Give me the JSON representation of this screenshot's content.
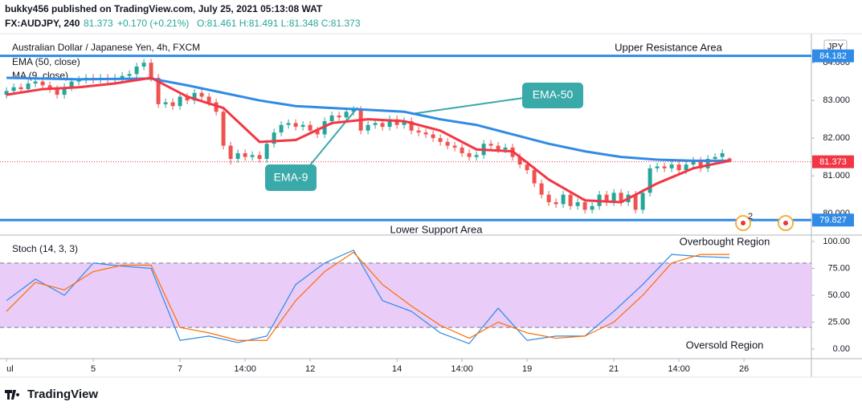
{
  "header": {
    "author_line": "bukky456 published on TradingView.com, July 25, 2021 05:13:08 WAT",
    "symbol": "FX:AUDJPY, 240",
    "price": "81.373",
    "change": "+0.170 (+0.21%)",
    "ohlc": "O:81.461 H:81.491 L:81.348 C:81.373"
  },
  "logo": "TradingView",
  "chart_data": [
    {
      "type": "candlestick",
      "title": "Australian Dollar / Japanese Yen, 4h, FXCM",
      "currency": "JPY",
      "xlim": [
        -0.9,
        111.1
      ],
      "ylim": [
        79.45,
        84.77
      ],
      "yticks": [
        {
          "value": 80,
          "label": "80.000"
        },
        {
          "value": 81,
          "label": "81.000"
        },
        {
          "value": 82,
          "label": "82.000"
        },
        {
          "value": 83,
          "label": "83.000"
        },
        {
          "value": 84,
          "label": "84.000"
        }
      ],
      "up_color": "#26a69a",
      "down_color": "#ef5350",
      "open": [
        83.15,
        83.25,
        83.35,
        83.3,
        83.45,
        83.5,
        83.4,
        83.3,
        83.15,
        83.35,
        83.5,
        83.55,
        83.6,
        83.55,
        83.6,
        83.55,
        83.6,
        83.65,
        83.7,
        83.9,
        84.0,
        83.6,
        82.9,
        82.95,
        82.85,
        83.1,
        83.0,
        83.2,
        83.1,
        82.95,
        82.7,
        81.8,
        81.45,
        81.6,
        81.5,
        81.55,
        81.45,
        81.85,
        82.15,
        82.35,
        82.4,
        82.3,
        82.35,
        82.2,
        82.1,
        82.45,
        82.6,
        82.55,
        82.7,
        82.75,
        82.2,
        82.35,
        82.4,
        82.3,
        82.5,
        82.35,
        82.45,
        82.2,
        82.15,
        82.1,
        82.0,
        81.9,
        81.8,
        81.75,
        81.6,
        81.5,
        81.55,
        81.85,
        81.8,
        81.7,
        81.75,
        81.5,
        81.3,
        81.15,
        80.8,
        80.5,
        80.3,
        80.25,
        80.5,
        80.2,
        80.3,
        80.1,
        80.2,
        80.5,
        80.3,
        80.55,
        80.3,
        80.5,
        80.1,
        80.55,
        81.2,
        81.25,
        81.2,
        81.3,
        81.15,
        81.3,
        81.4,
        81.2,
        81.45,
        81.5,
        81.461
      ],
      "high": [
        83.35,
        83.45,
        83.45,
        83.55,
        83.6,
        83.6,
        83.5,
        83.4,
        83.45,
        83.6,
        83.65,
        83.7,
        83.7,
        83.7,
        83.7,
        83.7,
        83.75,
        83.8,
        84.0,
        84.1,
        84.1,
        83.7,
        83.05,
        83.05,
        83.2,
        83.2,
        83.3,
        83.3,
        83.2,
        83.05,
        82.8,
        81.9,
        81.7,
        81.7,
        81.65,
        81.65,
        81.95,
        82.25,
        82.45,
        82.5,
        82.5,
        82.45,
        82.45,
        82.3,
        82.55,
        82.7,
        82.7,
        82.8,
        82.85,
        82.85,
        82.45,
        82.5,
        82.5,
        82.6,
        82.6,
        82.55,
        82.55,
        82.3,
        82.25,
        82.2,
        82.1,
        82.0,
        81.9,
        81.85,
        81.7,
        81.65,
        81.95,
        81.95,
        81.9,
        81.85,
        81.85,
        81.6,
        81.4,
        81.25,
        80.9,
        80.6,
        80.4,
        80.6,
        80.6,
        80.4,
        80.4,
        80.3,
        80.6,
        80.6,
        80.65,
        80.65,
        80.6,
        80.6,
        80.65,
        81.3,
        81.35,
        81.35,
        81.4,
        81.4,
        81.4,
        81.5,
        81.5,
        81.55,
        81.6,
        81.7,
        81.491
      ],
      "low": [
        83.05,
        83.15,
        83.2,
        83.2,
        83.35,
        83.3,
        83.2,
        83.05,
        83.05,
        83.25,
        83.4,
        83.45,
        83.45,
        83.45,
        83.45,
        83.45,
        83.5,
        83.55,
        83.6,
        83.8,
        83.5,
        82.8,
        82.8,
        82.75,
        82.75,
        82.9,
        82.9,
        83.0,
        82.85,
        82.6,
        81.7,
        81.3,
        81.35,
        81.4,
        81.4,
        81.35,
        81.35,
        81.75,
        82.05,
        82.25,
        82.2,
        82.2,
        82.1,
        82.0,
        82.0,
        82.35,
        82.45,
        82.45,
        82.6,
        82.1,
        82.1,
        82.25,
        82.2,
        82.2,
        82.25,
        82.25,
        82.1,
        82.05,
        82.0,
        81.9,
        81.8,
        81.7,
        81.65,
        81.5,
        81.4,
        81.4,
        81.45,
        81.7,
        81.6,
        81.6,
        81.4,
        81.2,
        81.05,
        80.7,
        80.4,
        80.2,
        80.15,
        80.15,
        80.1,
        80.1,
        80.0,
        80.0,
        80.1,
        80.2,
        80.2,
        80.2,
        80.2,
        80.0,
        80.0,
        80.45,
        81.1,
        81.1,
        81.1,
        81.05,
        81.05,
        81.2,
        81.1,
        81.1,
        81.35,
        81.4,
        81.348
      ],
      "close": [
        83.25,
        83.35,
        83.3,
        83.45,
        83.5,
        83.4,
        83.3,
        83.15,
        83.35,
        83.5,
        83.55,
        83.6,
        83.55,
        83.6,
        83.55,
        83.6,
        83.65,
        83.7,
        83.9,
        84.0,
        83.6,
        82.9,
        82.95,
        82.85,
        83.1,
        83.0,
        83.2,
        83.1,
        82.95,
        82.7,
        81.8,
        81.45,
        81.6,
        81.5,
        81.55,
        81.45,
        81.85,
        82.15,
        82.35,
        82.4,
        82.3,
        82.35,
        82.2,
        82.1,
        82.45,
        82.6,
        82.55,
        82.7,
        82.75,
        82.2,
        82.35,
        82.4,
        82.3,
        82.5,
        82.35,
        82.45,
        82.2,
        82.15,
        82.1,
        82.0,
        81.9,
        81.8,
        81.75,
        81.6,
        81.5,
        81.55,
        81.85,
        81.8,
        81.7,
        81.75,
        81.5,
        81.3,
        81.15,
        80.8,
        80.5,
        80.3,
        80.25,
        80.5,
        80.2,
        80.3,
        80.1,
        80.2,
        80.5,
        80.3,
        80.55,
        80.3,
        80.5,
        80.1,
        80.55,
        81.2,
        81.25,
        81.2,
        81.3,
        81.15,
        81.3,
        81.4,
        81.2,
        81.45,
        81.5,
        81.6,
        81.373
      ],
      "series": [
        {
          "name": "EMA (50, close)",
          "color": "#2f8be6",
          "x": [
            0,
            5,
            10,
            15,
            20,
            25,
            30,
            35,
            40,
            45,
            50,
            55,
            60,
            65,
            70,
            75,
            80,
            85,
            90,
            95,
            100
          ],
          "values": [
            83.6,
            83.58,
            83.56,
            83.57,
            83.58,
            83.4,
            83.2,
            83.0,
            82.85,
            82.8,
            82.75,
            82.7,
            82.5,
            82.35,
            82.1,
            81.85,
            81.65,
            81.5,
            81.43,
            81.4,
            81.4
          ]
        },
        {
          "name": "MA (9, close)",
          "color": "#f23645",
          "x": [
            0,
            5,
            10,
            15,
            20,
            25,
            30,
            35,
            40,
            45,
            50,
            55,
            60,
            65,
            70,
            75,
            80,
            85,
            90,
            95,
            100
          ],
          "values": [
            83.15,
            83.3,
            83.35,
            83.45,
            83.6,
            83.1,
            82.8,
            81.9,
            81.95,
            82.4,
            82.5,
            82.45,
            82.2,
            81.7,
            81.65,
            80.9,
            80.35,
            80.3,
            80.8,
            81.2,
            81.4
          ]
        }
      ],
      "levels": [
        {
          "name": "Upper Resistance Area",
          "value": 84.182,
          "color": "#2f8be6"
        },
        {
          "name": "Lower Support Area",
          "value": 79.827,
          "color": "#2f8be6"
        }
      ],
      "last_price": 81.373,
      "last_color": "#f23645",
      "annotations": [
        "EMA-50",
        "EMA-9"
      ],
      "marker_label": "2"
    },
    {
      "type": "line",
      "title": "Stoch (14, 3, 3)",
      "xlim": [
        -0.9,
        111.1
      ],
      "ylim": [
        -7.5,
        104.5
      ],
      "xticks": [
        {
          "value": 0,
          "label": "ul"
        },
        {
          "value": 12,
          "label": "5"
        },
        {
          "value": 24,
          "label": "7"
        },
        {
          "value": 33,
          "label": "14:00"
        },
        {
          "value": 42,
          "label": "12"
        },
        {
          "value": 54,
          "label": "14"
        },
        {
          "value": 63,
          "label": "14:00"
        },
        {
          "value": 72,
          "label": "19"
        },
        {
          "value": 84,
          "label": "21"
        },
        {
          "value": 93,
          "label": "14:00"
        },
        {
          "value": 102,
          "label": "26"
        }
      ],
      "yticks": [
        {
          "value": 0,
          "label": "0.00"
        },
        {
          "value": 25,
          "label": "25.00"
        },
        {
          "value": 50,
          "label": "50.00"
        },
        {
          "value": 75,
          "label": "75.00"
        },
        {
          "value": 100,
          "label": "100.00"
        }
      ],
      "band": [
        20,
        80
      ],
      "band_color": "#e7c6f7",
      "x": [
        0,
        4,
        8,
        12,
        16,
        20,
        24,
        28,
        32,
        36,
        40,
        44,
        48,
        52,
        56,
        60,
        64,
        68,
        72,
        76,
        80,
        84,
        88,
        92,
        96,
        100
      ],
      "series": [
        {
          "color": "#2f8be6",
          "values": [
            45,
            65,
            50,
            80,
            77,
            75,
            8,
            12,
            6,
            12,
            60,
            80,
            92,
            45,
            35,
            15,
            5,
            38,
            8,
            12,
            12,
            35,
            60,
            88,
            86,
            85
          ]
        },
        {
          "color": "#ff6d00",
          "values": [
            35,
            62,
            55,
            72,
            78,
            78,
            20,
            15,
            8,
            8,
            45,
            72,
            90,
            60,
            40,
            22,
            10,
            25,
            15,
            10,
            12,
            25,
            50,
            80,
            88,
            88
          ]
        }
      ],
      "annotations": [
        "Overbought Region",
        "Oversold Region"
      ]
    }
  ]
}
